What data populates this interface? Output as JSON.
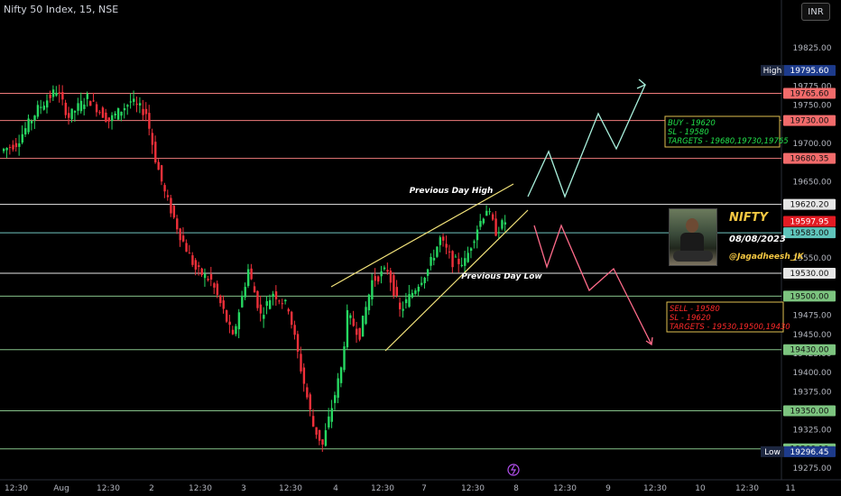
{
  "header": {
    "title": "Nifty 50 Index, 15, NSE",
    "currency": "INR"
  },
  "chart_data": {
    "type": "candlestick",
    "ylim": [
      19275,
      19850
    ],
    "y_ticks": [
      19825,
      19775,
      19750,
      19700,
      19650,
      19600,
      19550,
      19500,
      19475,
      19450,
      19425,
      19400,
      19375,
      19350,
      19325,
      19275
    ],
    "x_ticks": [
      {
        "label": "12:30",
        "x": 18
      },
      {
        "label": "Aug",
        "x": 68
      },
      {
        "label": "12:30",
        "x": 120
      },
      {
        "label": "2",
        "x": 168
      },
      {
        "label": "12:30",
        "x": 222
      },
      {
        "label": "3",
        "x": 270
      },
      {
        "label": "12:30",
        "x": 322
      },
      {
        "label": "4",
        "x": 372
      },
      {
        "label": "12:30",
        "x": 424
      },
      {
        "label": "7",
        "x": 470
      },
      {
        "label": "12:30",
        "x": 524
      },
      {
        "label": "8",
        "x": 572
      },
      {
        "label": "12:30",
        "x": 626
      },
      {
        "label": "9",
        "x": 674
      },
      {
        "label": "12:30",
        "x": 726
      },
      {
        "label": "10",
        "x": 776
      },
      {
        "label": "12:30",
        "x": 828
      },
      {
        "label": "11",
        "x": 876
      }
    ],
    "levels": [
      {
        "label": "High",
        "value": "19795.60",
        "y": 19795.6,
        "kind": "high"
      },
      {
        "label": "",
        "value": "19765.60",
        "y": 19765.6,
        "kind": "red"
      },
      {
        "label": "",
        "value": "19730.00",
        "y": 19730.0,
        "kind": "red"
      },
      {
        "label": "",
        "value": "19680.35",
        "y": 19680.35,
        "kind": "red"
      },
      {
        "label": "",
        "value": "19620.20",
        "y": 19620.2,
        "kind": "white"
      },
      {
        "label": "",
        "value": "19597.95",
        "y": 19597.95,
        "kind": "last"
      },
      {
        "label": "",
        "value": "19583.00",
        "y": 19583.0,
        "kind": "teal"
      },
      {
        "label": "",
        "value": "19530.00",
        "y": 19530.0,
        "kind": "white"
      },
      {
        "label": "",
        "value": "19500.00",
        "y": 19500.0,
        "kind": "green"
      },
      {
        "label": "",
        "value": "19430.00",
        "y": 19430.0,
        "kind": "green"
      },
      {
        "label": "",
        "value": "19350.00",
        "y": 19350.0,
        "kind": "green"
      },
      {
        "label": "",
        "value": "19300.10",
        "y": 19300.1,
        "kind": "green"
      },
      {
        "label": "Low",
        "value": "19296.45",
        "y": 19296.45,
        "kind": "low"
      }
    ],
    "annotations": {
      "prev_high": "Previous Day High",
      "prev_low": "Previous Day Low",
      "buy": [
        "BUY - 19620",
        "SL - 19580",
        "TARGETS - 19680,19730,19765"
      ],
      "sell": [
        "SELL - 19580",
        "SL - 19620",
        "TARGETS - 19530,19500,19430"
      ],
      "name": "NIFTY",
      "date": "08/08/2023",
      "handle": "@Jagadheesh_JK"
    },
    "path_key": [
      {
        "t": 0,
        "p": 19690
      },
      {
        "t": 5,
        "p": 19700
      },
      {
        "t": 12,
        "p": 19745
      },
      {
        "t": 18,
        "p": 19770
      },
      {
        "t": 22,
        "p": 19735
      },
      {
        "t": 28,
        "p": 19760
      },
      {
        "t": 35,
        "p": 19730
      },
      {
        "t": 42,
        "p": 19755
      },
      {
        "t": 47,
        "p": 19740
      },
      {
        "t": 50,
        "p": 19680
      },
      {
        "t": 53,
        "p": 19635
      },
      {
        "t": 58,
        "p": 19580
      },
      {
        "t": 63,
        "p": 19535
      },
      {
        "t": 68,
        "p": 19520
      },
      {
        "t": 72,
        "p": 19480
      },
      {
        "t": 75,
        "p": 19445
      },
      {
        "t": 80,
        "p": 19535
      },
      {
        "t": 84,
        "p": 19475
      },
      {
        "t": 88,
        "p": 19505
      },
      {
        "t": 93,
        "p": 19485
      },
      {
        "t": 97,
        "p": 19405
      },
      {
        "t": 101,
        "p": 19330
      },
      {
        "t": 104,
        "p": 19305
      },
      {
        "t": 107,
        "p": 19355
      },
      {
        "t": 110,
        "p": 19405
      },
      {
        "t": 112,
        "p": 19475
      },
      {
        "t": 116,
        "p": 19450
      },
      {
        "t": 120,
        "p": 19520
      },
      {
        "t": 125,
        "p": 19535
      },
      {
        "t": 129,
        "p": 19480
      },
      {
        "t": 133,
        "p": 19505
      },
      {
        "t": 138,
        "p": 19535
      },
      {
        "t": 142,
        "p": 19575
      },
      {
        "t": 146,
        "p": 19545
      },
      {
        "t": 150,
        "p": 19545
      },
      {
        "t": 154,
        "p": 19590
      },
      {
        "t": 157,
        "p": 19615
      },
      {
        "t": 160,
        "p": 19585
      },
      {
        "t": 163,
        "p": 19598
      }
    ]
  }
}
